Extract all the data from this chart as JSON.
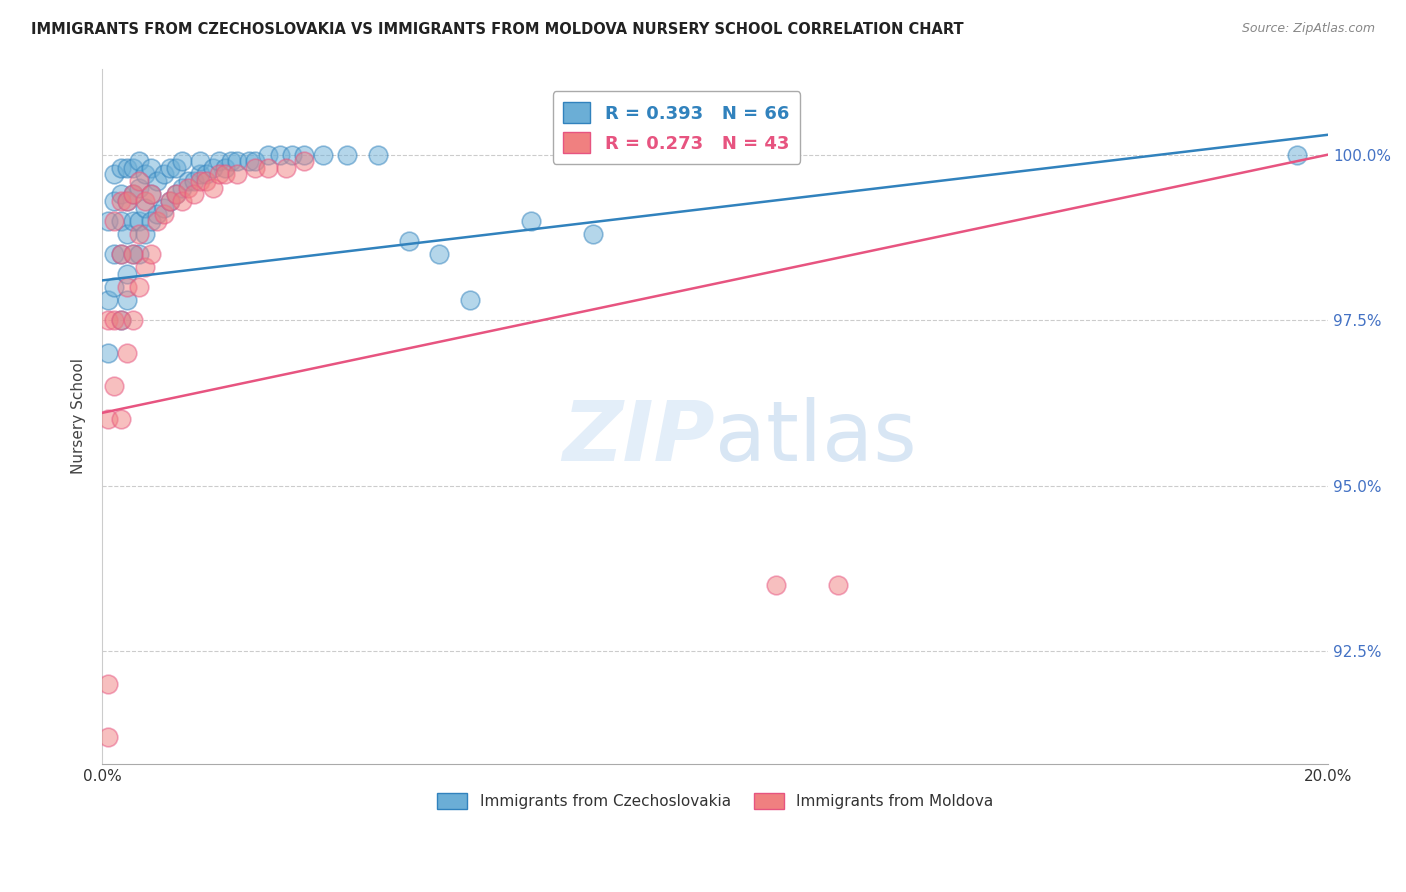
{
  "title": "IMMIGRANTS FROM CZECHOSLOVAKIA VS IMMIGRANTS FROM MOLDOVA NURSERY SCHOOL CORRELATION CHART",
  "source": "Source: ZipAtlas.com",
  "ylabel": "Nursery School",
  "ytick_labels": [
    "100.0%",
    "97.5%",
    "95.0%",
    "92.5%"
  ],
  "ytick_values": [
    1.0,
    0.975,
    0.95,
    0.925
  ],
  "xmin": 0.0,
  "xmax": 0.2,
  "ymin": 0.908,
  "ymax": 1.013,
  "blue_R": 0.393,
  "blue_N": 66,
  "pink_R": 0.273,
  "pink_N": 43,
  "blue_color": "#6baed6",
  "pink_color": "#f08080",
  "blue_line_color": "#3182bd",
  "pink_line_color": "#e75480",
  "legend_label_blue": "Immigrants from Czechoslovakia",
  "legend_label_pink": "Immigrants from Moldova",
  "blue_x": [
    0.001,
    0.001,
    0.001,
    0.002,
    0.002,
    0.002,
    0.002,
    0.003,
    0.003,
    0.003,
    0.003,
    0.003,
    0.004,
    0.004,
    0.004,
    0.004,
    0.004,
    0.005,
    0.005,
    0.005,
    0.005,
    0.006,
    0.006,
    0.006,
    0.006,
    0.007,
    0.007,
    0.007,
    0.008,
    0.008,
    0.008,
    0.009,
    0.009,
    0.01,
    0.01,
    0.011,
    0.011,
    0.012,
    0.012,
    0.013,
    0.013,
    0.014,
    0.015,
    0.016,
    0.016,
    0.017,
    0.018,
    0.019,
    0.02,
    0.021,
    0.022,
    0.024,
    0.025,
    0.027,
    0.029,
    0.031,
    0.033,
    0.036,
    0.04,
    0.045,
    0.05,
    0.055,
    0.06,
    0.07,
    0.08,
    0.195
  ],
  "blue_y": [
    0.97,
    0.978,
    0.99,
    0.98,
    0.985,
    0.993,
    0.997,
    0.975,
    0.985,
    0.99,
    0.994,
    0.998,
    0.978,
    0.982,
    0.988,
    0.993,
    0.998,
    0.985,
    0.99,
    0.994,
    0.998,
    0.985,
    0.99,
    0.995,
    0.999,
    0.988,
    0.992,
    0.997,
    0.99,
    0.994,
    0.998,
    0.991,
    0.996,
    0.992,
    0.997,
    0.993,
    0.998,
    0.994,
    0.998,
    0.995,
    0.999,
    0.996,
    0.996,
    0.997,
    0.999,
    0.997,
    0.998,
    0.999,
    0.998,
    0.999,
    0.999,
    0.999,
    0.999,
    1.0,
    1.0,
    1.0,
    1.0,
    1.0,
    1.0,
    1.0,
    0.987,
    0.985,
    0.978,
    0.99,
    0.988,
    1.0
  ],
  "pink_x": [
    0.001,
    0.001,
    0.001,
    0.001,
    0.002,
    0.002,
    0.002,
    0.003,
    0.003,
    0.003,
    0.003,
    0.004,
    0.004,
    0.004,
    0.005,
    0.005,
    0.005,
    0.006,
    0.006,
    0.006,
    0.007,
    0.007,
    0.008,
    0.008,
    0.009,
    0.01,
    0.011,
    0.012,
    0.013,
    0.014,
    0.015,
    0.016,
    0.017,
    0.018,
    0.019,
    0.02,
    0.022,
    0.025,
    0.027,
    0.03,
    0.033,
    0.11,
    0.12
  ],
  "pink_y": [
    0.912,
    0.92,
    0.96,
    0.975,
    0.965,
    0.975,
    0.99,
    0.96,
    0.975,
    0.985,
    0.993,
    0.97,
    0.98,
    0.993,
    0.975,
    0.985,
    0.994,
    0.98,
    0.988,
    0.996,
    0.983,
    0.993,
    0.985,
    0.994,
    0.99,
    0.991,
    0.993,
    0.994,
    0.993,
    0.995,
    0.994,
    0.996,
    0.996,
    0.995,
    0.997,
    0.997,
    0.997,
    0.998,
    0.998,
    0.998,
    0.999,
    0.935,
    0.935
  ],
  "blue_line_y0": 0.981,
  "blue_line_y1": 1.003,
  "pink_line_y0": 0.961,
  "pink_line_y1": 1.0
}
